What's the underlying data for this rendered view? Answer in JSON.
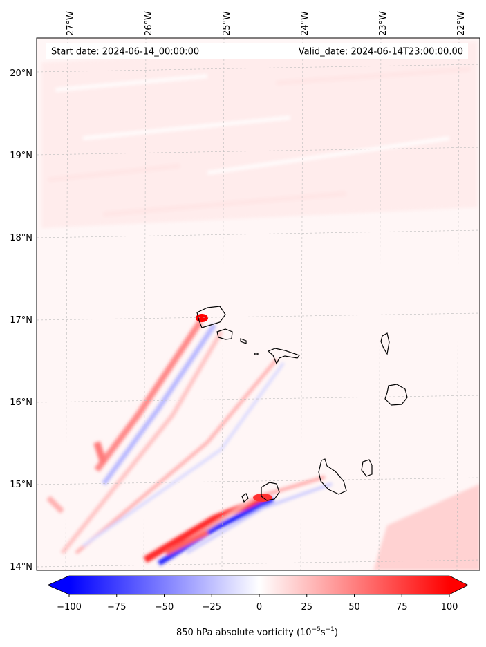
{
  "map": {
    "start_label": "Start date: 2024-06-14_00:00:00",
    "valid_label": "Valid_date: 2024-06-14T23:00:00.00",
    "lon_ticks": [
      "27°W",
      "26°W",
      "25°W",
      "24°W",
      "23°W",
      "22°W"
    ],
    "lat_ticks": [
      "20°N",
      "19°N",
      "18°N",
      "17°N",
      "16°N",
      "15°N",
      "14°N"
    ],
    "lon_values": [
      -27,
      -26,
      -25,
      -24,
      -23,
      -22
    ],
    "lat_values": [
      20,
      19,
      18,
      17,
      16,
      15,
      14
    ],
    "extent": {
      "lon_min": -27.4,
      "lon_max": -21.8,
      "lat_min": 13.95,
      "lat_max": 20.43
    }
  },
  "colorbar": {
    "ticks": [
      "−100",
      "−75",
      "−50",
      "−25",
      "0",
      "25",
      "50",
      "75",
      "100"
    ],
    "tick_values": [
      -100,
      -75,
      -50,
      -25,
      0,
      25,
      50,
      75,
      100
    ],
    "label": "850 hPa absolute vorticity (10",
    "label_exp1": "−5",
    "label_mid": "s",
    "label_exp2": "−1",
    "label_end": ")",
    "cmap": "bwr",
    "vmin": -100,
    "vmax": 100,
    "extend": "both"
  },
  "colors": {
    "negative": "#0000ff",
    "neutral": "#ffffff",
    "positive": "#ff0000",
    "coast": "#000000",
    "grid": "#bbbbbb"
  }
}
